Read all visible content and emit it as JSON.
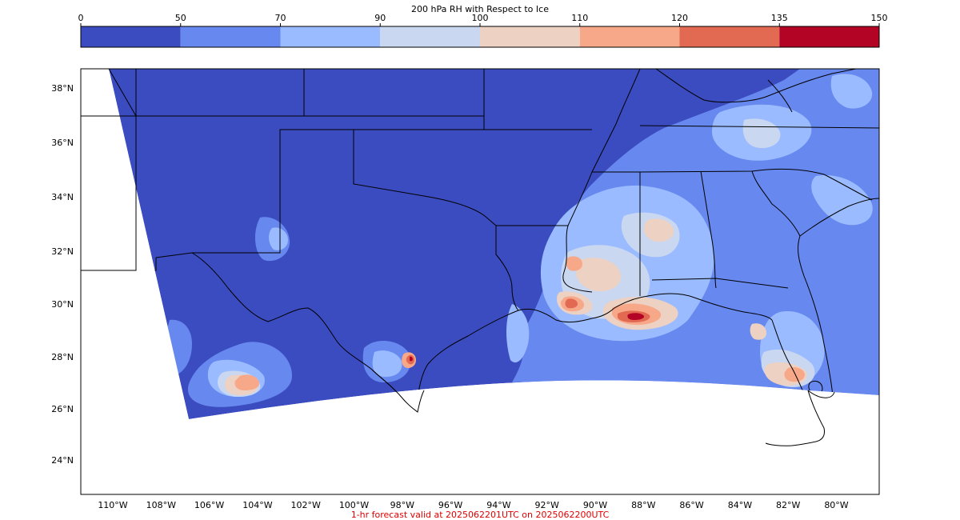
{
  "colorbar": {
    "title": "200 hPa RH with Respect to Ice",
    "ticks": [
      "0",
      "50",
      "70",
      "90",
      "100",
      "110",
      "120",
      "135",
      "150"
    ],
    "colors": [
      "#3b4cc0",
      "#6788ee",
      "#9abbff",
      "#c9d7f0",
      "#edd1c2",
      "#f7a889",
      "#e26952",
      "#b40426"
    ]
  },
  "map": {
    "lat_labels": [
      "38°N",
      "36°N",
      "34°N",
      "32°N",
      "30°N",
      "28°N",
      "26°N",
      "24°N"
    ],
    "lon_labels": [
      "110°W",
      "108°W",
      "106°W",
      "104°W",
      "102°W",
      "100°W",
      "98°W",
      "96°W",
      "94°W",
      "92°W",
      "90°W",
      "88°W",
      "86°W",
      "84°W",
      "82°W",
      "80°W"
    ],
    "background_color": "#3b4cc0"
  },
  "footer": {
    "caption": "1-hr forecast valid at 2025062201UTC on 2025062200UTC",
    "caption_color": "#e00000"
  }
}
